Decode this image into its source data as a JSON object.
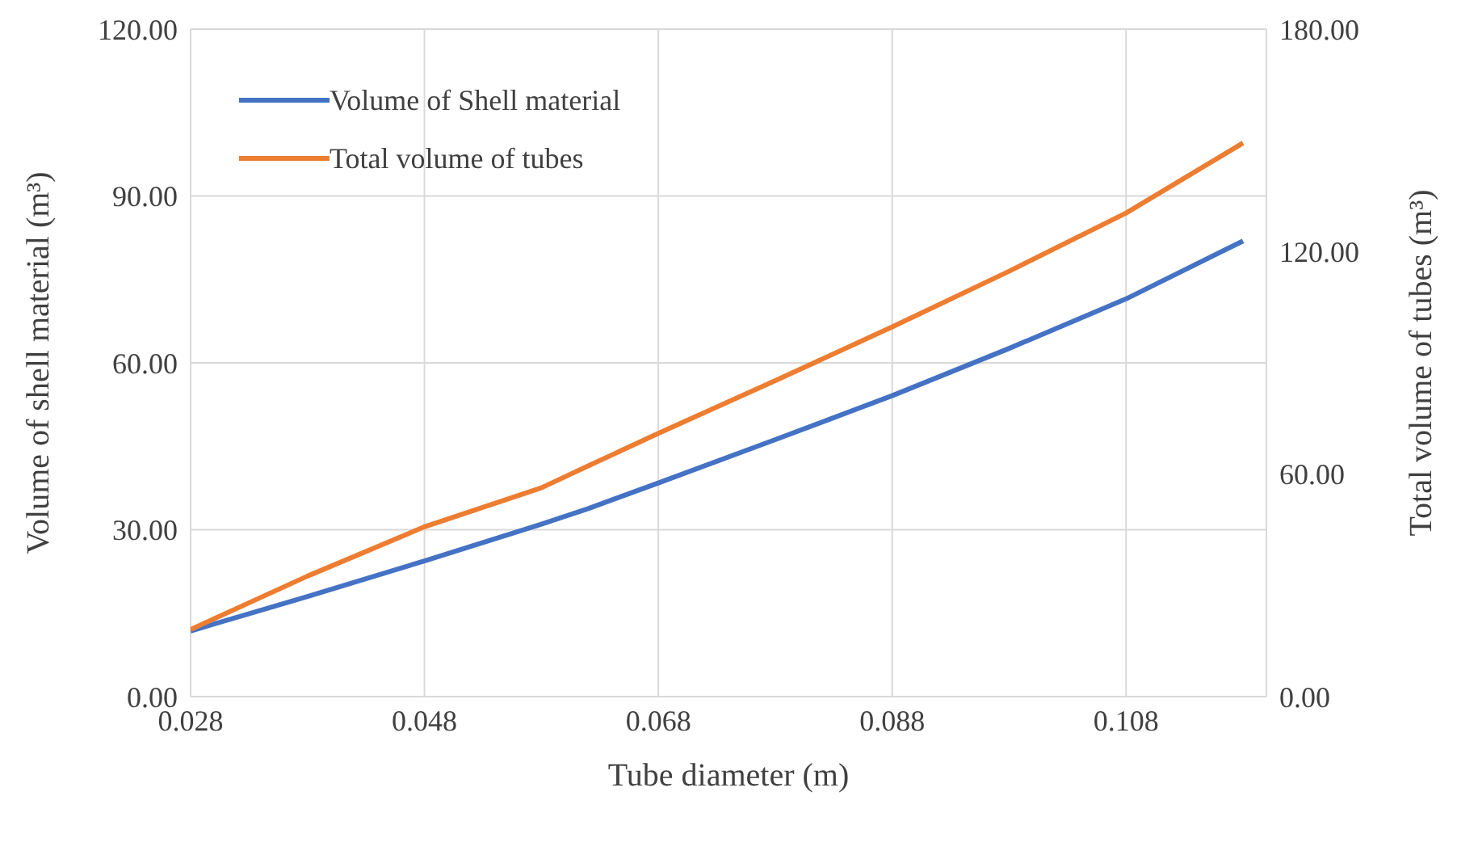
{
  "chart_data": {
    "type": "line",
    "xlabel": "Tube diameter (m)",
    "ylabel": "Volume of shell material (m³)",
    "y2label": "Total volume of tubes (m³)",
    "x": [
      0.028,
      0.038,
      0.048,
      0.058,
      0.062,
      0.068,
      0.078,
      0.088,
      0.098,
      0.108,
      0.118
    ],
    "series": [
      {
        "name": "Volume of Shell material",
        "color": "#4472c4",
        "values": [
          11.8,
          18.0,
          24.4,
          31.0,
          33.8,
          38.4,
          46.2,
          54.1,
          62.6,
          71.5,
          81.9
        ]
      },
      {
        "name": "Total volume of tubes",
        "color": "#ed7d31",
        "axis": "y2",
        "values": [
          18.1,
          32.5,
          45.8,
          56.3,
          62.2,
          71.0,
          85.2,
          99.7,
          114.7,
          130.4,
          149.3
        ]
      }
    ],
    "xlim": [
      0.028,
      0.12
    ],
    "xticks": [
      {
        "value": 0.028,
        "label": "0.028"
      },
      {
        "value": 0.048,
        "label": "0.048"
      },
      {
        "value": 0.068,
        "label": "0.068"
      },
      {
        "value": 0.088,
        "label": "0.088"
      },
      {
        "value": 0.108,
        "label": "0.108"
      }
    ],
    "ylim": [
      0,
      120
    ],
    "yticks": [
      {
        "value": 0,
        "label": "0.00"
      },
      {
        "value": 30,
        "label": "30.00"
      },
      {
        "value": 60,
        "label": "60.00"
      },
      {
        "value": 90,
        "label": "90.00"
      },
      {
        "value": 120,
        "label": "120.00"
      }
    ],
    "y2lim": [
      0,
      180
    ],
    "y2ticks": [
      {
        "value": 0,
        "label": "0.00"
      },
      {
        "value": 60,
        "label": "60.00"
      },
      {
        "value": 120,
        "label": "120.00"
      },
      {
        "value": 180,
        "label": "180.00"
      }
    ],
    "grid": true,
    "legend": "top left",
    "marker": "none",
    "line_style": "solid"
  }
}
